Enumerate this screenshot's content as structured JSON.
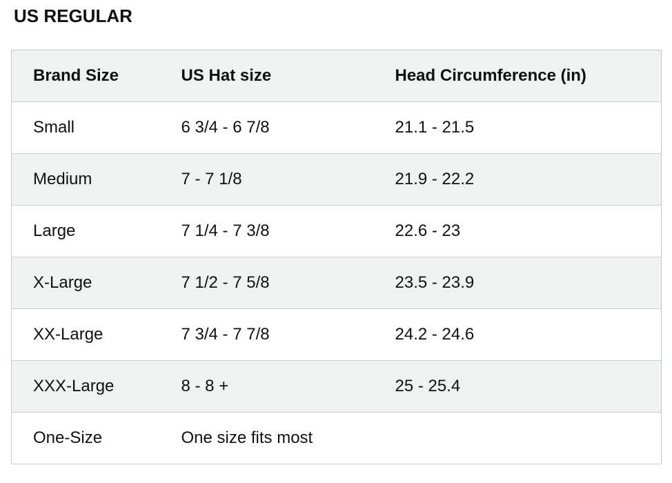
{
  "section": {
    "title": "US REGULAR"
  },
  "table": {
    "columns": [
      "Brand Size",
      "US Hat size",
      "Head Circumference (in)"
    ],
    "rows": [
      {
        "brand_size": "Small",
        "us_hat_size": "6 3/4 - 6 7/8",
        "head_circumference": "21.1 - 21.5"
      },
      {
        "brand_size": "Medium",
        "us_hat_size": "7 - 7 1/8",
        "head_circumference": "21.9 - 22.2"
      },
      {
        "brand_size": "Large",
        "us_hat_size": "7 1/4 - 7 3/8",
        "head_circumference": "22.6 - 23"
      },
      {
        "brand_size": "X-Large",
        "us_hat_size": "7 1/2 - 7 5/8",
        "head_circumference": "23.5 - 23.9"
      },
      {
        "brand_size": "XX-Large",
        "us_hat_size": "7 3/4 - 7 7/8",
        "head_circumference": "24.2 - 24.6"
      },
      {
        "brand_size": "XXX-Large",
        "us_hat_size": "8 - 8 +",
        "head_circumference": "25 - 25.4"
      },
      {
        "brand_size": "One-Size",
        "us_hat_size": "One size fits most",
        "head_circumference": ""
      }
    ]
  },
  "colors": {
    "background": "#ffffff",
    "row_stripe": "#f0f2f2",
    "table_border": "#c3c8c8",
    "row_divider": "#ccd0d0",
    "text": "#0f1111"
  }
}
